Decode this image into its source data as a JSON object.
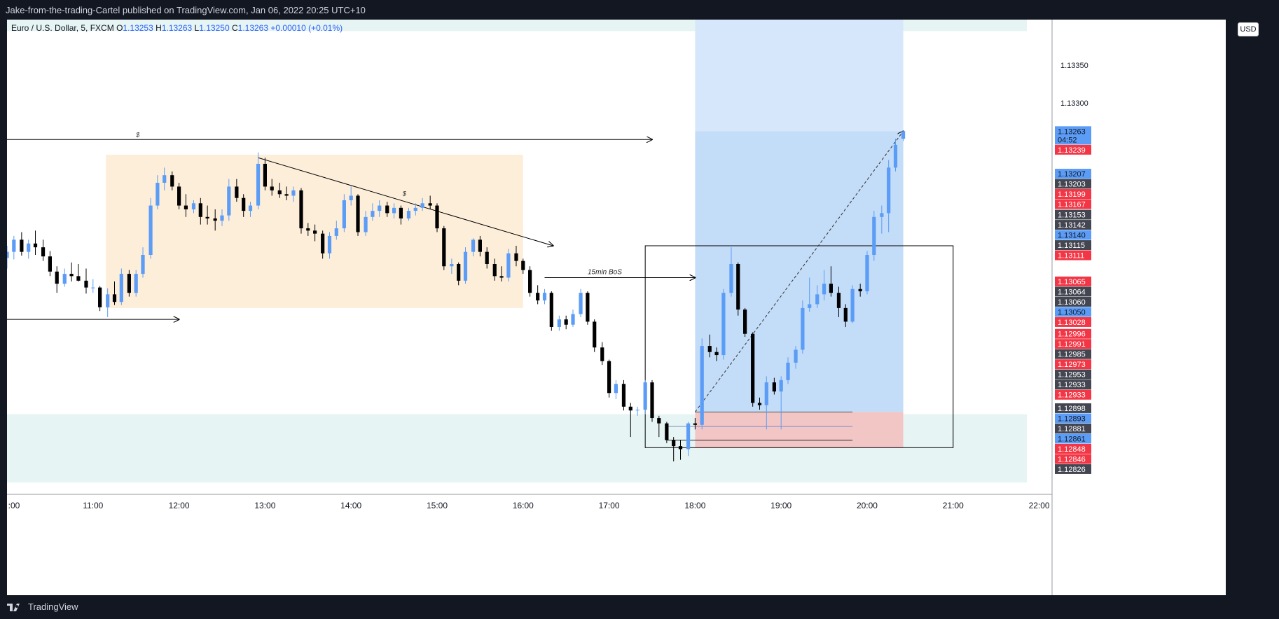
{
  "header": {
    "publisher": "Jake-from-the-trading-Cartel published on TradingView.com, Jan 06, 2022 20:25 UTC+10"
  },
  "legend": {
    "symbol": "Euro / U.S. Dollar, 5, FXCM",
    "open_label": "O",
    "open": "1.13253",
    "high_label": "H",
    "high": "1.13263",
    "low_label": "L",
    "low": "1.13250",
    "close_label": "C",
    "close": "1.13263",
    "change": "+0.00010 (+0.01%)"
  },
  "currency": "USD",
  "footer": {
    "brand": "TradingView"
  },
  "colors": {
    "up": "#5b9cf6",
    "down": "#000000",
    "sell_zone": "#ef5350",
    "price_label_blue": "#5b9cf6",
    "price_label_dark": "#434651",
    "price_label_red": "#f23645"
  },
  "chart_data": {
    "type": "candlestick",
    "symbol": "EURUSD",
    "timeframe": "5",
    "x_ticks": [
      ":00",
      "11:00",
      "12:00",
      "13:00",
      "14:00",
      "15:00",
      "16:00",
      "17:00",
      "18:00",
      "19:00",
      "20:00",
      "21:00",
      "22:00"
    ],
    "x_tick_times": [
      10,
      11,
      12,
      13,
      14,
      15,
      16,
      17,
      18,
      19,
      20,
      21,
      22
    ],
    "y_ticks": [
      "1.13350",
      "1.13300"
    ],
    "y_tick_values": [
      1.1335,
      1.133
    ],
    "ylim": [
      1.1279,
      1.1341
    ],
    "xlim": [
      10,
      22.15
    ],
    "price_labels": [
      {
        "text": "1.13263",
        "value": 1.13263,
        "style": "blue",
        "sub": "04:52"
      },
      {
        "text": "1.13239",
        "value": 1.13239,
        "style": "red"
      },
      {
        "text": "1.13207",
        "value": 1.13207,
        "style": "blue"
      },
      {
        "text": "1.13203",
        "value": 1.13203,
        "style": "dark"
      },
      {
        "text": "1.13199",
        "value": 1.13199,
        "style": "red"
      },
      {
        "text": "1.13167",
        "value": 1.13167,
        "style": "red"
      },
      {
        "text": "1.13153",
        "value": 1.13153,
        "style": "dark"
      },
      {
        "text": "1.13142",
        "value": 1.13142,
        "style": "dark"
      },
      {
        "text": "1.13140",
        "value": 1.1314,
        "style": "blue"
      },
      {
        "text": "1.13115",
        "value": 1.13115,
        "style": "dark"
      },
      {
        "text": "1.13111",
        "value": 1.13111,
        "style": "red"
      },
      {
        "text": "1.13065",
        "value": 1.13065,
        "style": "red"
      },
      {
        "text": "1.13064",
        "value": 1.13064,
        "style": "dark"
      },
      {
        "text": "1.13060",
        "value": 1.1306,
        "style": "dark"
      },
      {
        "text": "1.13050",
        "value": 1.1305,
        "style": "blue"
      },
      {
        "text": "1.13028",
        "value": 1.13028,
        "style": "red"
      },
      {
        "text": "1.12996",
        "value": 1.12996,
        "style": "red"
      },
      {
        "text": "1.12991",
        "value": 1.12991,
        "style": "red"
      },
      {
        "text": "1.12985",
        "value": 1.12985,
        "style": "dark"
      },
      {
        "text": "1.12973",
        "value": 1.12973,
        "style": "red"
      },
      {
        "text": "1.12953",
        "value": 1.12953,
        "style": "dark"
      },
      {
        "text": "1.12933",
        "value": 1.12933,
        "style": "dark"
      },
      {
        "text": "1.12933",
        "value": 1.12933,
        "style": "red"
      },
      {
        "text": "1.12898",
        "value": 1.12898,
        "style": "dark"
      },
      {
        "text": "1.12893",
        "value": 1.12893,
        "style": "blue"
      },
      {
        "text": "1.12881",
        "value": 1.12881,
        "style": "dark"
      },
      {
        "text": "1.12861",
        "value": 1.12861,
        "style": "blue"
      },
      {
        "text": "1.12848",
        "value": 1.12848,
        "style": "red"
      },
      {
        "text": "1.12846",
        "value": 1.12846,
        "style": "red"
      },
      {
        "text": "1.12826",
        "value": 1.12826,
        "style": "dark"
      }
    ],
    "annotations": {
      "top_line_label": "$",
      "trend_line_label": "$",
      "bos_label": "15min BoS"
    },
    "candles": [
      {
        "t": 10.0,
        "o": 1.13096,
        "h": 1.13112,
        "l": 1.13082,
        "c": 1.13104
      },
      {
        "t": 10.08,
        "o": 1.13104,
        "h": 1.13125,
        "l": 1.13094,
        "c": 1.1312
      },
      {
        "t": 10.17,
        "o": 1.1312,
        "h": 1.1313,
        "l": 1.13099,
        "c": 1.13104
      },
      {
        "t": 10.25,
        "o": 1.13104,
        "h": 1.1312,
        "l": 1.13095,
        "c": 1.13115
      },
      {
        "t": 10.33,
        "o": 1.13115,
        "h": 1.13132,
        "l": 1.131,
        "c": 1.1311
      },
      {
        "t": 10.42,
        "o": 1.1311,
        "h": 1.1312,
        "l": 1.13092,
        "c": 1.13098
      },
      {
        "t": 10.5,
        "o": 1.13098,
        "h": 1.13105,
        "l": 1.13072,
        "c": 1.13078
      },
      {
        "t": 10.58,
        "o": 1.13078,
        "h": 1.13085,
        "l": 1.1305,
        "c": 1.13062
      },
      {
        "t": 10.67,
        "o": 1.13062,
        "h": 1.13082,
        "l": 1.13058,
        "c": 1.13075
      },
      {
        "t": 10.75,
        "o": 1.13075,
        "h": 1.1309,
        "l": 1.13065,
        "c": 1.13072
      },
      {
        "t": 10.83,
        "o": 1.13072,
        "h": 1.13088,
        "l": 1.13065,
        "c": 1.13066
      },
      {
        "t": 10.92,
        "o": 1.13066,
        "h": 1.13082,
        "l": 1.13049,
        "c": 1.13057
      },
      {
        "t": 11.0,
        "o": 1.13057,
        "h": 1.13068,
        "l": 1.1305,
        "c": 1.13057
      },
      {
        "t": 11.08,
        "o": 1.13057,
        "h": 1.13059,
        "l": 1.13026,
        "c": 1.13031
      },
      {
        "t": 11.17,
        "o": 1.13031,
        "h": 1.13056,
        "l": 1.13018,
        "c": 1.13048
      },
      {
        "t": 11.25,
        "o": 1.13048,
        "h": 1.13065,
        "l": 1.13034,
        "c": 1.13038
      },
      {
        "t": 11.33,
        "o": 1.13038,
        "h": 1.13082,
        "l": 1.13034,
        "c": 1.13075
      },
      {
        "t": 11.42,
        "o": 1.13075,
        "h": 1.1308,
        "l": 1.13045,
        "c": 1.1305
      },
      {
        "t": 11.5,
        "o": 1.1305,
        "h": 1.1308,
        "l": 1.13045,
        "c": 1.13075
      },
      {
        "t": 11.58,
        "o": 1.13075,
        "h": 1.1311,
        "l": 1.1307,
        "c": 1.131
      },
      {
        "t": 11.67,
        "o": 1.131,
        "h": 1.13175,
        "l": 1.13095,
        "c": 1.13165
      },
      {
        "t": 11.75,
        "o": 1.13165,
        "h": 1.13205,
        "l": 1.1316,
        "c": 1.13195
      },
      {
        "t": 11.83,
        "o": 1.13195,
        "h": 1.13215,
        "l": 1.13185,
        "c": 1.13205
      },
      {
        "t": 11.92,
        "o": 1.13205,
        "h": 1.1321,
        "l": 1.13185,
        "c": 1.1319
      },
      {
        "t": 12.0,
        "o": 1.1319,
        "h": 1.13195,
        "l": 1.1316,
        "c": 1.13165
      },
      {
        "t": 12.08,
        "o": 1.13165,
        "h": 1.1318,
        "l": 1.1315,
        "c": 1.1316
      },
      {
        "t": 12.17,
        "o": 1.1316,
        "h": 1.13172,
        "l": 1.13155,
        "c": 1.13168
      },
      {
        "t": 12.25,
        "o": 1.13168,
        "h": 1.13175,
        "l": 1.1314,
        "c": 1.1315
      },
      {
        "t": 12.33,
        "o": 1.1315,
        "h": 1.13165,
        "l": 1.1314,
        "c": 1.13148
      },
      {
        "t": 12.42,
        "o": 1.13148,
        "h": 1.1316,
        "l": 1.13132,
        "c": 1.13145
      },
      {
        "t": 12.5,
        "o": 1.13145,
        "h": 1.1316,
        "l": 1.13138,
        "c": 1.13152
      },
      {
        "t": 12.58,
        "o": 1.13152,
        "h": 1.132,
        "l": 1.13145,
        "c": 1.1319
      },
      {
        "t": 12.67,
        "o": 1.1319,
        "h": 1.132,
        "l": 1.1317,
        "c": 1.13175
      },
      {
        "t": 12.75,
        "o": 1.13175,
        "h": 1.1318,
        "l": 1.1315,
        "c": 1.13158
      },
      {
        "t": 12.83,
        "o": 1.13158,
        "h": 1.1317,
        "l": 1.1315,
        "c": 1.13165
      },
      {
        "t": 12.92,
        "o": 1.13165,
        "h": 1.13235,
        "l": 1.1316,
        "c": 1.1322
      },
      {
        "t": 13.0,
        "o": 1.1322,
        "h": 1.13228,
        "l": 1.13185,
        "c": 1.1319
      },
      {
        "t": 13.08,
        "o": 1.1319,
        "h": 1.132,
        "l": 1.13178,
        "c": 1.13185
      },
      {
        "t": 13.17,
        "o": 1.13185,
        "h": 1.13195,
        "l": 1.13175,
        "c": 1.1318
      },
      {
        "t": 13.25,
        "o": 1.1318,
        "h": 1.1319,
        "l": 1.13172,
        "c": 1.13178
      },
      {
        "t": 13.33,
        "o": 1.13178,
        "h": 1.1319,
        "l": 1.1317,
        "c": 1.13185
      },
      {
        "t": 13.42,
        "o": 1.13185,
        "h": 1.13188,
        "l": 1.13128,
        "c": 1.13135
      },
      {
        "t": 13.5,
        "o": 1.13135,
        "h": 1.13142,
        "l": 1.13125,
        "c": 1.13132
      },
      {
        "t": 13.58,
        "o": 1.13132,
        "h": 1.1314,
        "l": 1.13118,
        "c": 1.13128
      },
      {
        "t": 13.67,
        "o": 1.13128,
        "h": 1.13132,
        "l": 1.13095,
        "c": 1.13102
      },
      {
        "t": 13.75,
        "o": 1.13102,
        "h": 1.1313,
        "l": 1.13095,
        "c": 1.13125
      },
      {
        "t": 13.83,
        "o": 1.13125,
        "h": 1.13145,
        "l": 1.1312,
        "c": 1.13135
      },
      {
        "t": 13.92,
        "o": 1.13135,
        "h": 1.1318,
        "l": 1.1313,
        "c": 1.13172
      },
      {
        "t": 14.0,
        "o": 1.13172,
        "h": 1.1319,
        "l": 1.13165,
        "c": 1.13178
      },
      {
        "t": 14.08,
        "o": 1.13178,
        "h": 1.1318,
        "l": 1.13125,
        "c": 1.1313
      },
      {
        "t": 14.17,
        "o": 1.1313,
        "h": 1.13158,
        "l": 1.13125,
        "c": 1.1315
      },
      {
        "t": 14.25,
        "o": 1.1315,
        "h": 1.13168,
        "l": 1.13145,
        "c": 1.13158
      },
      {
        "t": 14.33,
        "o": 1.13158,
        "h": 1.13172,
        "l": 1.1315,
        "c": 1.13165
      },
      {
        "t": 14.42,
        "o": 1.13165,
        "h": 1.1317,
        "l": 1.1315,
        "c": 1.13155
      },
      {
        "t": 14.5,
        "o": 1.13155,
        "h": 1.13168,
        "l": 1.13148,
        "c": 1.13162
      },
      {
        "t": 14.58,
        "o": 1.13162,
        "h": 1.13165,
        "l": 1.1314,
        "c": 1.13148
      },
      {
        "t": 14.67,
        "o": 1.13148,
        "h": 1.13162,
        "l": 1.13145,
        "c": 1.13158
      },
      {
        "t": 14.75,
        "o": 1.13158,
        "h": 1.13168,
        "l": 1.13152,
        "c": 1.13162
      },
      {
        "t": 14.83,
        "o": 1.13162,
        "h": 1.13175,
        "l": 1.13158,
        "c": 1.13168
      },
      {
        "t": 14.92,
        "o": 1.13168,
        "h": 1.13178,
        "l": 1.1316,
        "c": 1.13165
      },
      {
        "t": 15.0,
        "o": 1.13165,
        "h": 1.13168,
        "l": 1.1313,
        "c": 1.13135
      },
      {
        "t": 15.08,
        "o": 1.13135,
        "h": 1.13138,
        "l": 1.1308,
        "c": 1.13085
      },
      {
        "t": 15.17,
        "o": 1.13085,
        "h": 1.13095,
        "l": 1.13075,
        "c": 1.13088
      },
      {
        "t": 15.25,
        "o": 1.13088,
        "h": 1.1309,
        "l": 1.1306,
        "c": 1.13066
      },
      {
        "t": 15.33,
        "o": 1.13066,
        "h": 1.1311,
        "l": 1.13062,
        "c": 1.13104
      },
      {
        "t": 15.42,
        "o": 1.13104,
        "h": 1.13122,
        "l": 1.13098,
        "c": 1.1312
      },
      {
        "t": 15.5,
        "o": 1.1312,
        "h": 1.13125,
        "l": 1.13098,
        "c": 1.13104
      },
      {
        "t": 15.58,
        "o": 1.13104,
        "h": 1.1311,
        "l": 1.13082,
        "c": 1.13088
      },
      {
        "t": 15.67,
        "o": 1.13088,
        "h": 1.13095,
        "l": 1.13066,
        "c": 1.13072
      },
      {
        "t": 15.75,
        "o": 1.13072,
        "h": 1.13085,
        "l": 1.13065,
        "c": 1.1307
      },
      {
        "t": 15.83,
        "o": 1.1307,
        "h": 1.13108,
        "l": 1.13065,
        "c": 1.13102
      },
      {
        "t": 15.92,
        "o": 1.13102,
        "h": 1.13112,
        "l": 1.13085,
        "c": 1.13092
      },
      {
        "t": 16.0,
        "o": 1.13092,
        "h": 1.13095,
        "l": 1.13075,
        "c": 1.1308
      },
      {
        "t": 16.08,
        "o": 1.1308,
        "h": 1.13085,
        "l": 1.13045,
        "c": 1.1305
      },
      {
        "t": 16.17,
        "o": 1.1305,
        "h": 1.1306,
        "l": 1.13035,
        "c": 1.1304
      },
      {
        "t": 16.25,
        "o": 1.1304,
        "h": 1.13055,
        "l": 1.13035,
        "c": 1.1305
      },
      {
        "t": 16.33,
        "o": 1.1305,
        "h": 1.13052,
        "l": 1.13,
        "c": 1.13005
      },
      {
        "t": 16.42,
        "o": 1.13005,
        "h": 1.1302,
        "l": 1.13,
        "c": 1.13015
      },
      {
        "t": 16.5,
        "o": 1.13015,
        "h": 1.1302,
        "l": 1.13002,
        "c": 1.13008
      },
      {
        "t": 16.58,
        "o": 1.13008,
        "h": 1.13028,
        "l": 1.13005,
        "c": 1.13022
      },
      {
        "t": 16.67,
        "o": 1.13022,
        "h": 1.13055,
        "l": 1.13018,
        "c": 1.1305
      },
      {
        "t": 16.75,
        "o": 1.1305,
        "h": 1.13052,
        "l": 1.13008,
        "c": 1.13012
      },
      {
        "t": 16.83,
        "o": 1.13012,
        "h": 1.13015,
        "l": 1.12972,
        "c": 1.12978
      },
      {
        "t": 16.92,
        "o": 1.12978,
        "h": 1.12985,
        "l": 1.12955,
        "c": 1.1296
      },
      {
        "t": 17.0,
        "o": 1.1296,
        "h": 1.12962,
        "l": 1.12912,
        "c": 1.12918
      },
      {
        "t": 17.08,
        "o": 1.12918,
        "h": 1.12935,
        "l": 1.1291,
        "c": 1.1293
      },
      {
        "t": 17.17,
        "o": 1.1293,
        "h": 1.12935,
        "l": 1.12895,
        "c": 1.129
      },
      {
        "t": 17.25,
        "o": 1.129,
        "h": 1.12905,
        "l": 1.1286,
        "c": 1.12895
      },
      {
        "t": 17.33,
        "o": 1.12895,
        "h": 1.129,
        "l": 1.12888,
        "c": 1.12896
      },
      {
        "t": 17.42,
        "o": 1.12896,
        "h": 1.12935,
        "l": 1.1289,
        "c": 1.12932
      },
      {
        "t": 17.5,
        "o": 1.12932,
        "h": 1.12935,
        "l": 1.1288,
        "c": 1.12885
      },
      {
        "t": 17.58,
        "o": 1.12885,
        "h": 1.12888,
        "l": 1.1286,
        "c": 1.12878
      },
      {
        "t": 17.67,
        "o": 1.12878,
        "h": 1.1288,
        "l": 1.12852,
        "c": 1.12856
      },
      {
        "t": 17.75,
        "o": 1.12856,
        "h": 1.1286,
        "l": 1.12828,
        "c": 1.12848
      },
      {
        "t": 17.83,
        "o": 1.12848,
        "h": 1.12856,
        "l": 1.1283,
        "c": 1.12844
      },
      {
        "t": 17.92,
        "o": 1.12844,
        "h": 1.1288,
        "l": 1.12835,
        "c": 1.12878
      },
      {
        "t": 18.0,
        "o": 1.12878,
        "h": 1.12885,
        "l": 1.1287,
        "c": 1.12876
      },
      {
        "t": 18.08,
        "o": 1.12876,
        "h": 1.1299,
        "l": 1.1287,
        "c": 1.1298
      },
      {
        "t": 18.17,
        "o": 1.1298,
        "h": 1.12995,
        "l": 1.12965,
        "c": 1.12972
      },
      {
        "t": 18.25,
        "o": 1.12972,
        "h": 1.12978,
        "l": 1.1296,
        "c": 1.12968
      },
      {
        "t": 18.33,
        "o": 1.12968,
        "h": 1.13055,
        "l": 1.12962,
        "c": 1.1305
      },
      {
        "t": 18.42,
        "o": 1.1305,
        "h": 1.1311,
        "l": 1.13045,
        "c": 1.13088
      },
      {
        "t": 18.5,
        "o": 1.13088,
        "h": 1.1309,
        "l": 1.1302,
        "c": 1.13028
      },
      {
        "t": 18.58,
        "o": 1.13028,
        "h": 1.1303,
        "l": 1.12992,
        "c": 1.12996
      },
      {
        "t": 18.67,
        "o": 1.12996,
        "h": 1.12998,
        "l": 1.129,
        "c": 1.12905
      },
      {
        "t": 18.75,
        "o": 1.12905,
        "h": 1.12912,
        "l": 1.12896,
        "c": 1.12902
      },
      {
        "t": 18.83,
        "o": 1.12902,
        "h": 1.1294,
        "l": 1.1287,
        "c": 1.12932
      },
      {
        "t": 18.92,
        "o": 1.12932,
        "h": 1.12938,
        "l": 1.12916,
        "c": 1.1292
      },
      {
        "t": 19.0,
        "o": 1.1292,
        "h": 1.1294,
        "l": 1.1287,
        "c": 1.12935
      },
      {
        "t": 19.08,
        "o": 1.12935,
        "h": 1.12965,
        "l": 1.1293,
        "c": 1.12958
      },
      {
        "t": 19.17,
        "o": 1.12958,
        "h": 1.1298,
        "l": 1.1295,
        "c": 1.12975
      },
      {
        "t": 19.25,
        "o": 1.12975,
        "h": 1.1304,
        "l": 1.1297,
        "c": 1.1303
      },
      {
        "t": 19.33,
        "o": 1.1303,
        "h": 1.1307,
        "l": 1.13025,
        "c": 1.13035
      },
      {
        "t": 19.42,
        "o": 1.13035,
        "h": 1.1306,
        "l": 1.1303,
        "c": 1.13048
      },
      {
        "t": 19.5,
        "o": 1.13048,
        "h": 1.1308,
        "l": 1.1304,
        "c": 1.13062
      },
      {
        "t": 19.58,
        "o": 1.13062,
        "h": 1.13085,
        "l": 1.13045,
        "c": 1.1305
      },
      {
        "t": 19.67,
        "o": 1.1305,
        "h": 1.13058,
        "l": 1.13018,
        "c": 1.1303
      },
      {
        "t": 19.75,
        "o": 1.1303,
        "h": 1.13035,
        "l": 1.13005,
        "c": 1.13012
      },
      {
        "t": 19.83,
        "o": 1.13012,
        "h": 1.1306,
        "l": 1.1301,
        "c": 1.13055
      },
      {
        "t": 19.92,
        "o": 1.13055,
        "h": 1.13062,
        "l": 1.13045,
        "c": 1.13052
      },
      {
        "t": 20.0,
        "o": 1.13052,
        "h": 1.13105,
        "l": 1.13048,
        "c": 1.131
      },
      {
        "t": 20.08,
        "o": 1.131,
        "h": 1.13158,
        "l": 1.13092,
        "c": 1.1315
      },
      {
        "t": 20.17,
        "o": 1.1315,
        "h": 1.13165,
        "l": 1.13128,
        "c": 1.13155
      },
      {
        "t": 20.25,
        "o": 1.13155,
        "h": 1.13225,
        "l": 1.1313,
        "c": 1.13215
      },
      {
        "t": 20.33,
        "o": 1.13215,
        "h": 1.13253,
        "l": 1.1321,
        "c": 1.13245
      },
      {
        "t": 20.42,
        "o": 1.13253,
        "h": 1.13263,
        "l": 1.1325,
        "c": 1.13263
      }
    ]
  }
}
